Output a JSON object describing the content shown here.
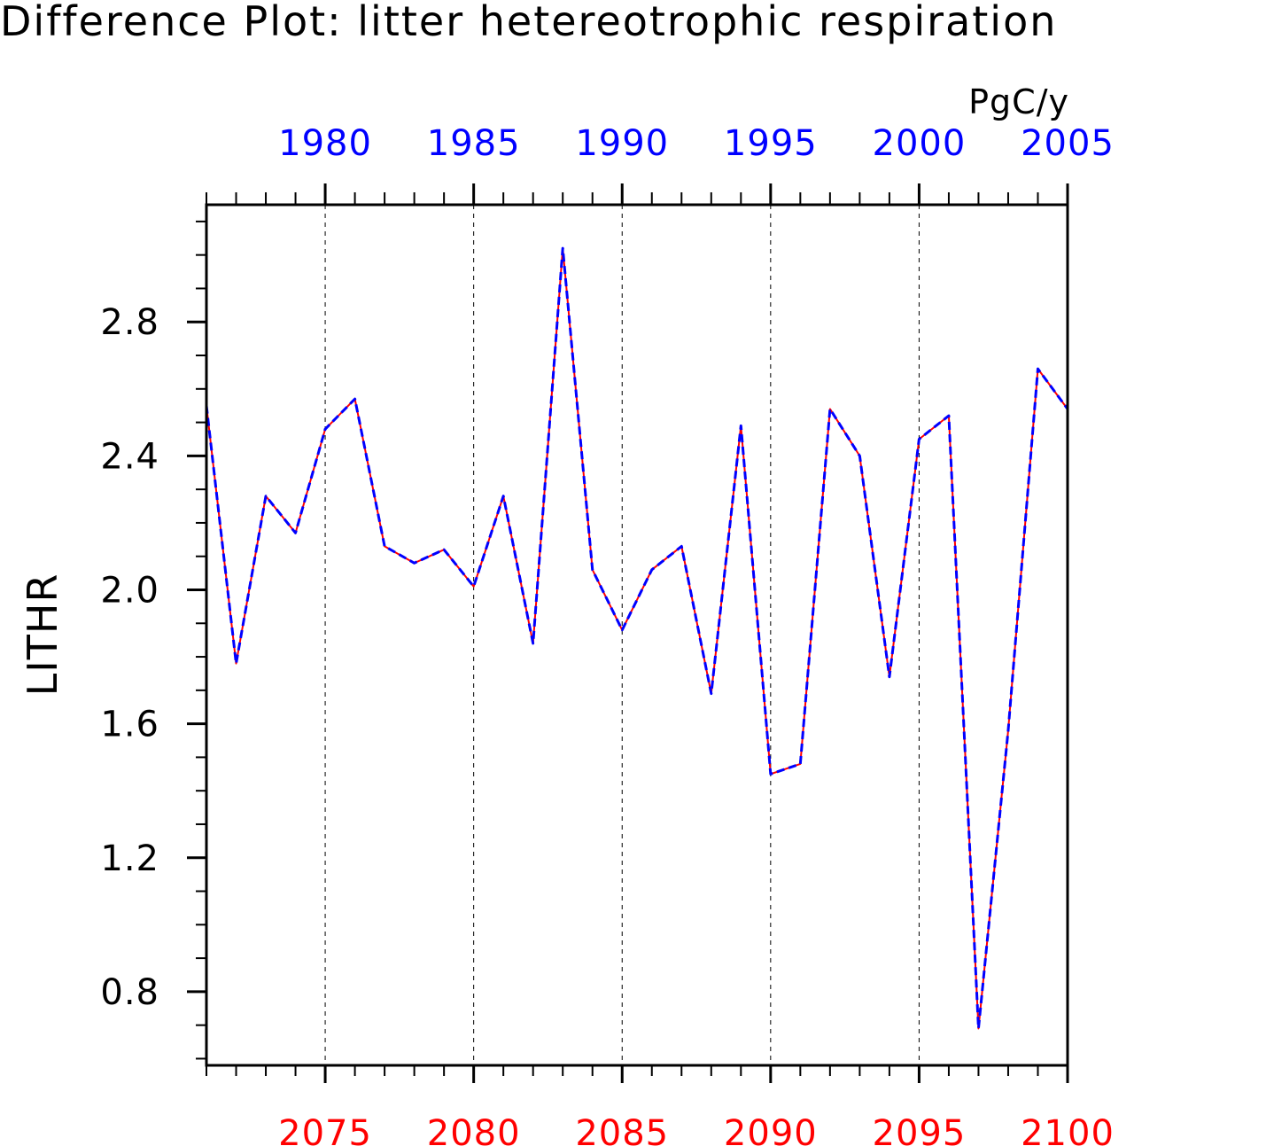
{
  "chart_data": {
    "type": "line",
    "title": "Difference Plot: litter hetereotrophic respiration",
    "units": "PgC/y",
    "ylabel": "LITHR",
    "xlabel": "",
    "ylim": [
      0.58,
      3.15
    ],
    "yticks": [
      0.8,
      1.2,
      1.6,
      2.0,
      2.4,
      2.8
    ],
    "ytick_labels": [
      "0.8",
      "1.2",
      "1.6",
      "2.0",
      "2.4",
      "2.8"
    ],
    "y_minor_step": 0.1,
    "grid": "vertical dashed lines at major bottom-axis ticks",
    "x_bottom": {
      "range": [
        2071,
        2100
      ],
      "ticks": [
        2075,
        2080,
        2085,
        2090,
        2095,
        2100
      ],
      "tick_labels": [
        "2075",
        "2080",
        "2085",
        "2090",
        "2095",
        "2100"
      ],
      "color": "#ff0000"
    },
    "x_top": {
      "range": [
        1976,
        2005
      ],
      "ticks": [
        1980,
        1985,
        1990,
        1995,
        2000,
        2005
      ],
      "tick_labels": [
        "1980",
        "1985",
        "1990",
        "1995",
        "2000",
        "2005"
      ],
      "color": "#0000ff"
    },
    "x": [
      2071,
      2072,
      2073,
      2074,
      2075,
      2076,
      2077,
      2078,
      2079,
      2080,
      2081,
      2082,
      2083,
      2084,
      2085,
      2086,
      2087,
      2088,
      2089,
      2090,
      2091,
      2092,
      2093,
      2094,
      2095,
      2096,
      2097,
      2098,
      2099,
      2100
    ],
    "series": [
      {
        "color": "#ff0000",
        "style": "solid",
        "values": [
          2.55,
          1.78,
          2.28,
          2.17,
          2.48,
          2.57,
          2.13,
          2.08,
          2.12,
          2.01,
          2.28,
          1.84,
          3.02,
          2.06,
          1.88,
          2.06,
          2.13,
          1.69,
          2.49,
          1.45,
          1.48,
          2.54,
          2.4,
          1.74,
          2.45,
          2.52,
          0.69,
          1.58,
          2.66,
          2.54
        ]
      },
      {
        "color": "#0000ff",
        "style": "dashed",
        "values": [
          2.55,
          1.78,
          2.28,
          2.17,
          2.48,
          2.57,
          2.13,
          2.08,
          2.12,
          2.01,
          2.28,
          1.84,
          3.02,
          2.06,
          1.88,
          2.06,
          2.13,
          1.69,
          2.49,
          1.45,
          1.48,
          2.54,
          2.4,
          1.74,
          2.45,
          2.52,
          0.69,
          1.58,
          2.66,
          2.54
        ]
      }
    ]
  }
}
